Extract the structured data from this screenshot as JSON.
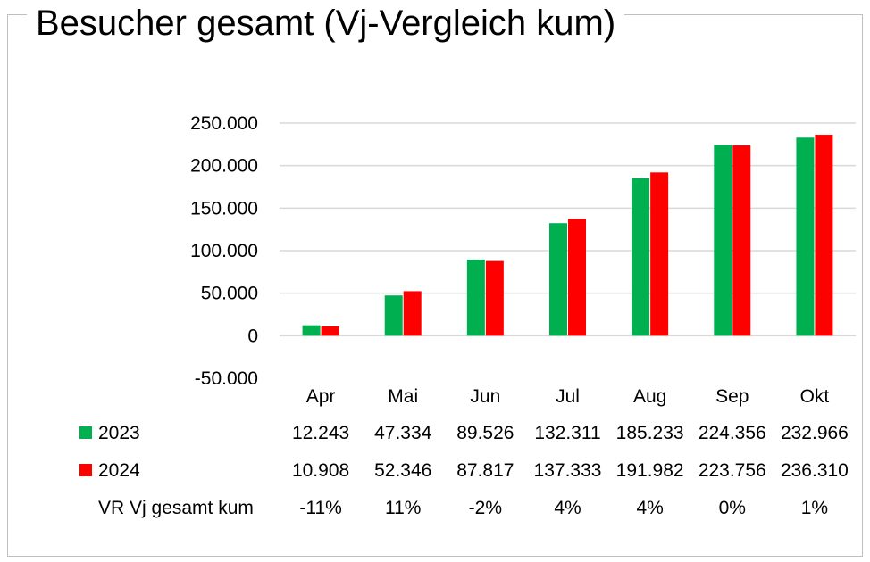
{
  "chart_data": {
    "type": "bar",
    "title": "Besucher gesamt (Vj-Vergleich kum)",
    "categories": [
      "Apr",
      "Mai",
      "Jun",
      "Jul",
      "Aug",
      "Sep",
      "Okt"
    ],
    "series": [
      {
        "name": "2023",
        "color": "#00b050",
        "values": [
          12243,
          47334,
          89526,
          132311,
          185233,
          224356,
          232966
        ],
        "labels": [
          "12.243",
          "47.334",
          "89.526",
          "132.311",
          "185.233",
          "224.356",
          "232.966"
        ]
      },
      {
        "name": "2024",
        "color": "#ff0000",
        "values": [
          10908,
          52346,
          87817,
          137333,
          191982,
          223756,
          236310
        ],
        "labels": [
          "10.908",
          "52.346",
          "87.817",
          "137.333",
          "191.982",
          "223.756",
          "236.310"
        ]
      }
    ],
    "table_rows": [
      {
        "label": "VR Vj gesamt kum",
        "values": [
          "-11%",
          "11%",
          "-2%",
          "4%",
          "4%",
          "0%",
          "1%"
        ]
      }
    ],
    "yticks": [
      {
        "value": 250000,
        "label": "250.000"
      },
      {
        "value": 200000,
        "label": "200.000"
      },
      {
        "value": 150000,
        "label": "150.000"
      },
      {
        "value": 100000,
        "label": "100.000"
      },
      {
        "value": 50000,
        "label": "50.000"
      },
      {
        "value": 0,
        "label": "0"
      },
      {
        "value": -50000,
        "label": "-50.000"
      }
    ],
    "ylim": [
      -50000,
      250000
    ],
    "grid": true,
    "legend": "data-table"
  }
}
